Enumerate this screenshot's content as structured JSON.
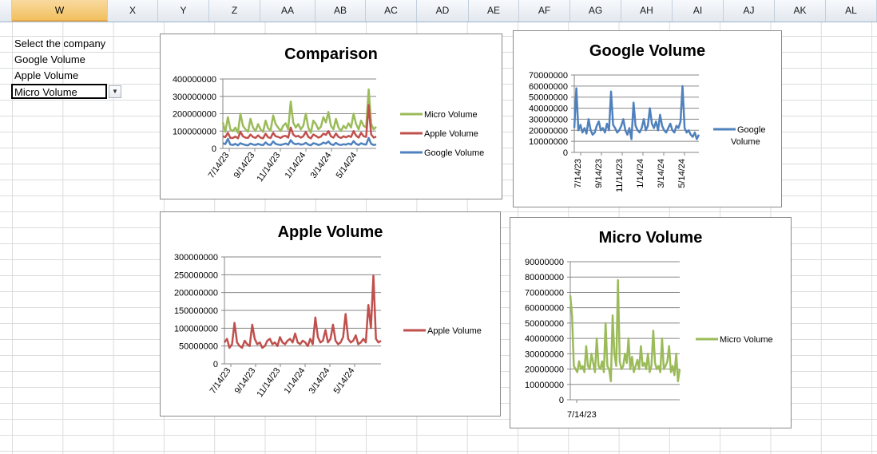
{
  "columns": [
    "W",
    "X",
    "Y",
    "Z",
    "AA",
    "AB",
    "AC",
    "AD",
    "AE",
    "AF",
    "AG",
    "AH",
    "AI",
    "AJ",
    "AK",
    "AL"
  ],
  "selected_column": "W",
  "cells": {
    "prompt": "Select the company",
    "option1": "Google Volume",
    "option2": "Apple Volume",
    "selected_value": "Micro Volume"
  },
  "colors": {
    "micro": "#9bbb59",
    "apple": "#c0504d",
    "google": "#4f81bd"
  },
  "chart_data": [
    {
      "type": "line",
      "title": "Comparison",
      "x_ticks": [
        "7/14/23",
        "9/14/23",
        "11/14/23",
        "1/14/24",
        "3/14/24",
        "5/14/24"
      ],
      "y_ticks": [
        "400000000",
        "300000000",
        "200000000",
        "100000000",
        "0"
      ],
      "ylim": [
        0,
        400000000
      ],
      "legend": "right",
      "series": [
        {
          "name": "Micro Volume",
          "color": "#9bbb59",
          "values": [
            150,
            95,
            180,
            110,
            100,
            120,
            90,
            200,
            130,
            110,
            95,
            170,
            120,
            100,
            140,
            110,
            95,
            160,
            115,
            105,
            190,
            140,
            120,
            100,
            130,
            145,
            110,
            270,
            150,
            120,
            140,
            110,
            130,
            200,
            120,
            90,
            160,
            140,
            110,
            125,
            180,
            150,
            210,
            130,
            110,
            170,
            120,
            100,
            130,
            115,
            145,
            120,
            200,
            140,
            110,
            160,
            130,
            120,
            340,
            140,
            110,
            125
          ]
        },
        {
          "name": "Apple Volume",
          "color": "#c0504d",
          "values": [
            70,
            65,
            90,
            60,
            60,
            68,
            58,
            95,
            70,
            62,
            60,
            80,
            66,
            60,
            75,
            62,
            58,
            85,
            64,
            60,
            90,
            70,
            66,
            60,
            70,
            72,
            62,
            120,
            80,
            68,
            72,
            62,
            70,
            95,
            66,
            58,
            80,
            72,
            62,
            68,
            85,
            78,
            100,
            70,
            62,
            86,
            66,
            60,
            70,
            64,
            72,
            66,
            100,
            74,
            62,
            90,
            70,
            66,
            250,
            80,
            62,
            68
          ]
        },
        {
          "name": "Google Volume",
          "color": "#4f81bd",
          "values": [
            30,
            25,
            55,
            22,
            20,
            26,
            18,
            30,
            24,
            20,
            18,
            28,
            22,
            20,
            26,
            21,
            19,
            35,
            22,
            20,
            40,
            26,
            22,
            20,
            24,
            28,
            21,
            48,
            30,
            24,
            28,
            22,
            24,
            32,
            22,
            18,
            30,
            26,
            20,
            24,
            34,
            28,
            40,
            24,
            20,
            32,
            22,
            20,
            24,
            22,
            28,
            22,
            42,
            26,
            20,
            30,
            24,
            22,
            60,
            26,
            20,
            22
          ]
        }
      ]
    },
    {
      "type": "line",
      "title": "Google Volume",
      "x_ticks": [
        "7/14/23",
        "9/14/23",
        "11/14/23",
        "1/14/24",
        "3/14/24",
        "5/14/24"
      ],
      "y_ticks": [
        "70000000",
        "60000000",
        "50000000",
        "40000000",
        "30000000",
        "20000000",
        "10000000",
        "0"
      ],
      "ylim": [
        0,
        70000000
      ],
      "legend": "right",
      "series": [
        {
          "name": "Google Volume",
          "color": "#4f81bd",
          "values": [
            22,
            58,
            20,
            25,
            18,
            22,
            17,
            30,
            20,
            16,
            18,
            24,
            28,
            20,
            22,
            18,
            26,
            20,
            55,
            25,
            22,
            18,
            20,
            24,
            30,
            20,
            16,
            22,
            12,
            45,
            24,
            20,
            18,
            22,
            30,
            20,
            24,
            40,
            26,
            22,
            28,
            20,
            34,
            24,
            20,
            18,
            22,
            26,
            20,
            18,
            24,
            22,
            28,
            60,
            22,
            18,
            20,
            16,
            14,
            18,
            12,
            16
          ]
        }
      ]
    },
    {
      "type": "line",
      "title": "Apple Volume",
      "x_ticks": [
        "7/14/23",
        "9/14/23",
        "11/14/23",
        "1/14/24",
        "3/14/24",
        "5/14/24"
      ],
      "y_ticks": [
        "300000000",
        "250000000",
        "200000000",
        "150000000",
        "100000000",
        "50000000",
        "0"
      ],
      "ylim": [
        0,
        300000000
      ],
      "legend": "right",
      "series": [
        {
          "name": "Apple Volume",
          "color": "#c0504d",
          "values": [
            60,
            70,
            45,
            55,
            115,
            60,
            50,
            45,
            65,
            55,
            50,
            110,
            70,
            55,
            60,
            45,
            50,
            65,
            70,
            55,
            60,
            50,
            75,
            60,
            55,
            65,
            70,
            60,
            85,
            60,
            55,
            65,
            60,
            50,
            70,
            55,
            130,
            75,
            60,
            65,
            95,
            60,
            70,
            110,
            65,
            55,
            60,
            75,
            140,
            70,
            60,
            65,
            80,
            55,
            60,
            70,
            60,
            165,
            100,
            248,
            70,
            60,
            65
          ]
        }
      ]
    },
    {
      "type": "line",
      "title": "Micro Volume",
      "x_ticks": [
        "7/14/23"
      ],
      "y_ticks": [
        "90000000",
        "80000000",
        "70000000",
        "60000000",
        "50000000",
        "40000000",
        "30000000",
        "20000000",
        "10000000",
        "0"
      ],
      "ylim": [
        0,
        90000000
      ],
      "legend": "right",
      "series": [
        {
          "name": "Micro Volume",
          "color": "#9bbb59",
          "values": [
            68,
            55,
            22,
            20,
            18,
            25,
            20,
            22,
            18,
            35,
            22,
            20,
            30,
            24,
            18,
            40,
            22,
            20,
            25,
            18,
            50,
            22,
            20,
            12,
            55,
            30,
            22,
            78,
            25,
            20,
            22,
            30,
            24,
            40,
            20,
            28,
            18,
            22,
            26,
            20,
            35,
            22,
            24,
            20,
            30,
            18,
            22,
            45,
            24,
            20,
            22,
            18,
            40,
            20,
            22,
            25,
            35,
            18,
            22,
            16,
            30,
            12,
            20
          ]
        }
      ]
    }
  ]
}
